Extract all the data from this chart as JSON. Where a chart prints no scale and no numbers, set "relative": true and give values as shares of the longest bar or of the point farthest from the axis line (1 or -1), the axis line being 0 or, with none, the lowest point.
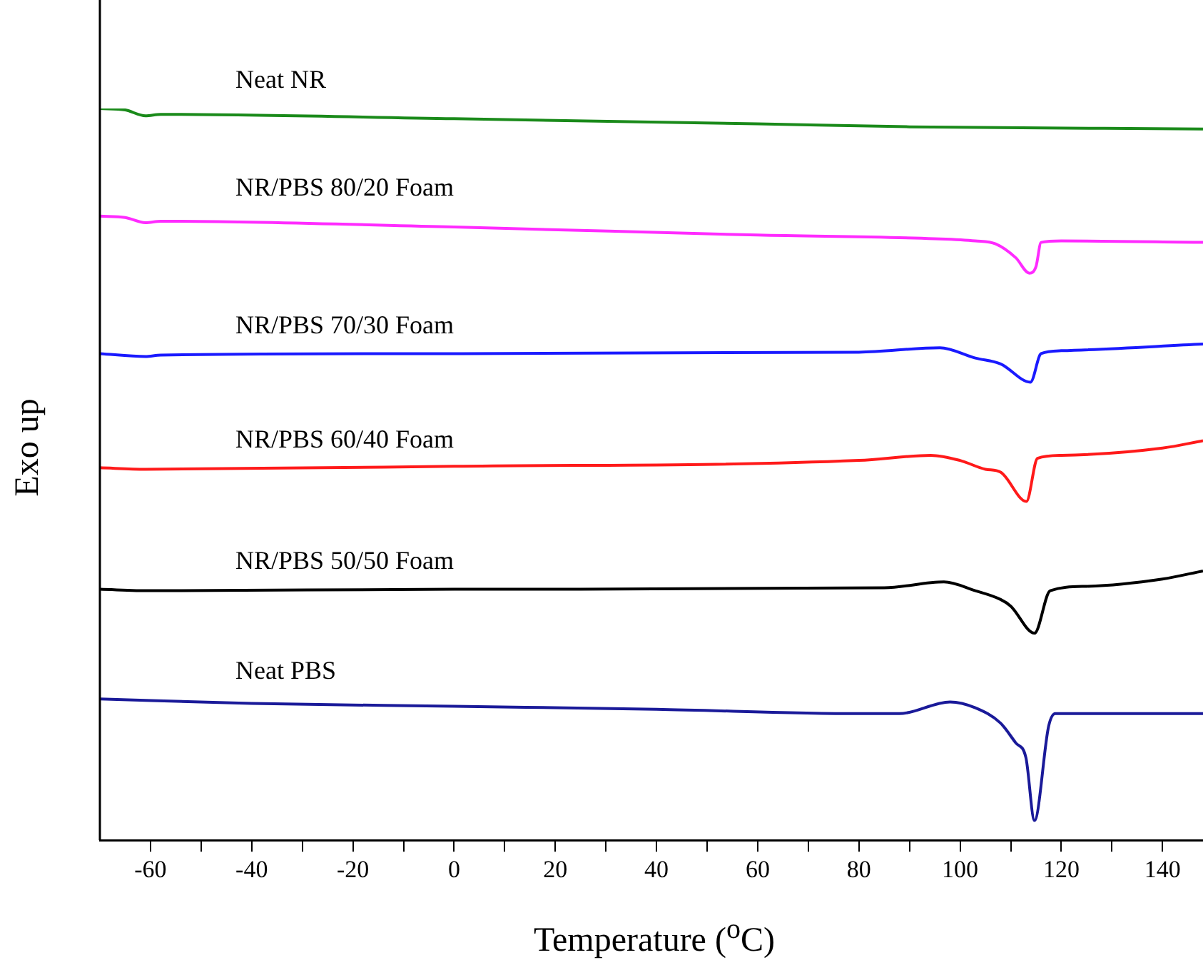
{
  "chart_data": {
    "type": "line",
    "relative": true,
    "xlabel": "Temperature ($^{o}$C)",
    "ylabel": "Exo up",
    "xlim": [
      -70,
      148
    ],
    "xticks": [
      -60,
      {
        "value": -50,
        "label": null
      },
      -40,
      {
        "value": -30,
        "label": null
      },
      -20,
      {
        "value": -10,
        "label": null
      },
      0,
      {
        "value": 10,
        "label": null
      },
      20,
      {
        "value": 30,
        "label": null
      },
      40,
      {
        "value": 50,
        "label": null
      },
      60,
      {
        "value": 70,
        "label": null
      },
      80,
      {
        "value": 90,
        "label": null
      },
      100,
      {
        "value": 110,
        "label": null
      },
      120,
      {
        "value": 130,
        "label": null
      },
      140
    ],
    "grid": false,
    "legend": false,
    "marker": "none",
    "line_style": "solid",
    "series": [
      {
        "name": "Neat NR",
        "color": "#1a8a1a",
        "x": [
          -70,
          -65,
          -61,
          -58,
          0,
          60,
          90,
          148
        ],
        "values": [
          1.0,
          0.998,
          0.99,
          0.992,
          0.986,
          0.979,
          0.975,
          0.972
        ]
      },
      {
        "name": "NR/PBS 80/20 Foam",
        "color": "#ff2bff",
        "x": [
          -70,
          -65,
          -61,
          -58,
          0,
          60,
          95,
          103,
          107,
          111,
          113.7,
          115,
          116,
          120,
          148
        ],
        "values": [
          0.853,
          0.851,
          0.844,
          0.846,
          0.838,
          0.827,
          0.822,
          0.819,
          0.815,
          0.796,
          0.775,
          0.784,
          0.817,
          0.819,
          0.817
        ]
      },
      {
        "name": "NR/PBS 70/30 Foam",
        "color": "#1a1aff",
        "x": [
          -70,
          -61,
          -58,
          0,
          80,
          96,
          103,
          108,
          113.9,
          116,
          120,
          148
        ],
        "values": [
          0.665,
          0.661,
          0.663,
          0.665,
          0.667,
          0.673,
          0.659,
          0.651,
          0.626,
          0.665,
          0.669,
          0.678
        ]
      },
      {
        "name": "NR/PBS 60/40 Foam",
        "color": "#ff1a1a",
        "x": [
          -70,
          -61,
          0,
          80,
          94.2,
          100,
          105,
          108,
          113.1,
          115.3,
          120,
          140,
          148
        ],
        "values": [
          0.509,
          0.507,
          0.511,
          0.519,
          0.526,
          0.519,
          0.507,
          0.503,
          0.463,
          0.522,
          0.526,
          0.536,
          0.546
        ]
      },
      {
        "name": "NR/PBS 50/50 Foam",
        "color": "#000000",
        "x": [
          -70,
          -60,
          0,
          85,
          96.8,
          103,
          108,
          110,
          114.7,
          117.8,
          125,
          140,
          148
        ],
        "values": [
          0.343,
          0.341,
          0.343,
          0.345,
          0.353,
          0.341,
          0.329,
          0.32,
          0.283,
          0.341,
          0.347,
          0.357,
          0.368
        ]
      },
      {
        "name": "Neat PBS",
        "color": "#1a1a99",
        "x": [
          -70,
          -40,
          0,
          40,
          80,
          88,
          98,
          103,
          108,
          111,
          113,
          114.7,
          117.5,
          118.8,
          148
        ],
        "values": [
          0.193,
          0.187,
          0.183,
          0.179,
          0.173,
          0.173,
          0.189,
          0.181,
          0.16,
          0.133,
          0.113,
          0.027,
          0.156,
          0.173,
          0.173
        ]
      }
    ]
  }
}
